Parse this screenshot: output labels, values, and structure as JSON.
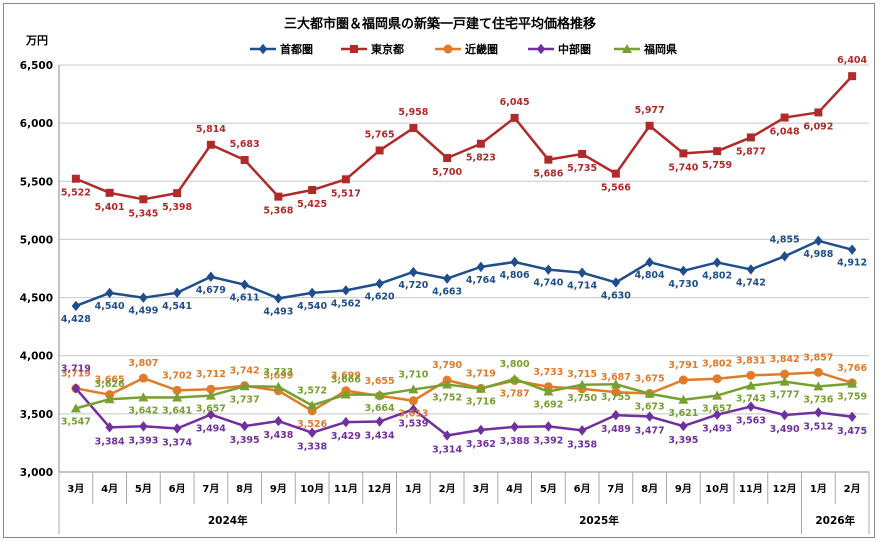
{
  "chart_data": {
    "type": "line",
    "title": "三大都市圏＆福岡県の新築一戸建て住宅平均価格推移",
    "ylabel": "万円",
    "ylim": [
      3000,
      6500
    ],
    "yticks": [
      "3,000",
      "3,500",
      "4,000",
      "4,500",
      "5,000",
      "5,500",
      "6,000",
      "6,500"
    ],
    "ytick_values": [
      3000,
      3500,
      4000,
      4500,
      5000,
      5500,
      6000,
      6500
    ],
    "categories": [
      "3月",
      "4月",
      "5月",
      "6月",
      "7月",
      "8月",
      "9月",
      "10月",
      "11月",
      "12月",
      "1月",
      "2月",
      "3月",
      "4月",
      "5月",
      "6月",
      "7月",
      "8月",
      "9月",
      "10月",
      "11月",
      "12月",
      "1月",
      "2月"
    ],
    "year_groups": [
      {
        "label": "2024年",
        "start": 0,
        "end": 9
      },
      {
        "label": "2025年",
        "start": 10,
        "end": 21
      },
      {
        "label": "2026年",
        "start": 22,
        "end": 23
      }
    ],
    "legend_position": "top-center",
    "series": [
      {
        "name": "首都圏",
        "color": "#1f4e8c",
        "marker": "diamond",
        "values": [
          4428,
          4540,
          4499,
          4541,
          4679,
          4611,
          4493,
          4540,
          4562,
          4620,
          4720,
          4663,
          4764,
          4806,
          4740,
          4714,
          4630,
          4804,
          4730,
          4802,
          4742,
          4855,
          4988,
          4912
        ],
        "labels": [
          "4,428",
          "4,540",
          "4,499",
          "4,541",
          "4,679",
          "4,611",
          "4,493",
          "4,540",
          "4,562",
          "4,620",
          "4,720",
          "4,663",
          "4,764",
          "4,806",
          "4,740",
          "4,714",
          "4,630",
          "4,804",
          "4,730",
          "4,802",
          "4,742",
          "4,855",
          "4,988",
          "4,912"
        ]
      },
      {
        "name": "東京都",
        "color": "#b02a2a",
        "marker": "square",
        "values": [
          5522,
          5401,
          5345,
          5398,
          5814,
          5683,
          5368,
          5425,
          5517,
          5765,
          5958,
          5700,
          5823,
          6045,
          5686,
          5735,
          5566,
          5977,
          5740,
          5759,
          5877,
          6048,
          6092,
          6404
        ],
        "labels": [
          "5,522",
          "5,401",
          "5,345",
          "5,398",
          "5,814",
          "5,683",
          "5,368",
          "5,425",
          "5,517",
          "5,765",
          "5,958",
          "5,700",
          "5,823",
          "6,045",
          "5,686",
          "5,735",
          "5,566",
          "5,977",
          "5,740",
          "5,759",
          "5,877",
          "6,048",
          "6,092",
          "6,404"
        ]
      },
      {
        "name": "近畿圏",
        "color": "#e07b29",
        "marker": "circle",
        "values": [
          3719,
          3665,
          3807,
          3702,
          3712,
          3742,
          3699,
          3526,
          3699,
          3655,
          3613,
          3790,
          3719,
          3787,
          3733,
          3715,
          3687,
          3675,
          3791,
          3802,
          3831,
          3842,
          3857,
          3766
        ],
        "labels": [
          "3,719",
          "3,665",
          "3,807",
          "3,702",
          "3,712",
          "3,742",
          "3,699",
          "3,526",
          "3,699",
          "3,655",
          "3,613",
          "3,790",
          "3,719",
          "3,787",
          "3,733",
          "3,715",
          "3,687",
          "3,675",
          "3,791",
          "3,802",
          "3,831",
          "3,842",
          "3,857",
          "3,766"
        ]
      },
      {
        "name": "中部圏",
        "color": "#7030a0",
        "marker": "diamond",
        "values": [
          3719,
          3384,
          3393,
          3374,
          3494,
          3395,
          3438,
          3338,
          3429,
          3434,
          3539,
          3314,
          3362,
          3388,
          3392,
          3358,
          3489,
          3477,
          3395,
          3493,
          3563,
          3490,
          3512,
          3475
        ],
        "labels": [
          "3,719",
          "3,384",
          "3,393",
          "3,374",
          "3,494",
          "3,395",
          "3,438",
          "3,338",
          "3,429",
          "3,434",
          "3,539",
          "3,314",
          "3,362",
          "3,388",
          "3,392",
          "3,358",
          "3,489",
          "3,477",
          "3,395",
          "3,493",
          "3,563",
          "3,490",
          "3,512",
          "3,475"
        ]
      },
      {
        "name": "福岡県",
        "color": "#77a030",
        "marker": "triangle",
        "values": [
          3547,
          3626,
          3642,
          3641,
          3657,
          3737,
          3733,
          3572,
          3666,
          3664,
          3710,
          3752,
          3716,
          3800,
          3692,
          3750,
          3755,
          3673,
          3621,
          3657,
          3743,
          3777,
          3736,
          3759
        ],
        "labels": [
          "3,547",
          "3,626",
          "3,642",
          "3,641",
          "3,657",
          "3,737",
          "3,733",
          "3,572",
          "3,666",
          "3,664",
          "3,710",
          "3,752",
          "3,716",
          "3,800",
          "3,692",
          "3,750",
          "3,755",
          "3,673",
          "3,621",
          "3,657",
          "3,743",
          "3,777",
          "3,736",
          "3,759"
        ]
      }
    ]
  }
}
